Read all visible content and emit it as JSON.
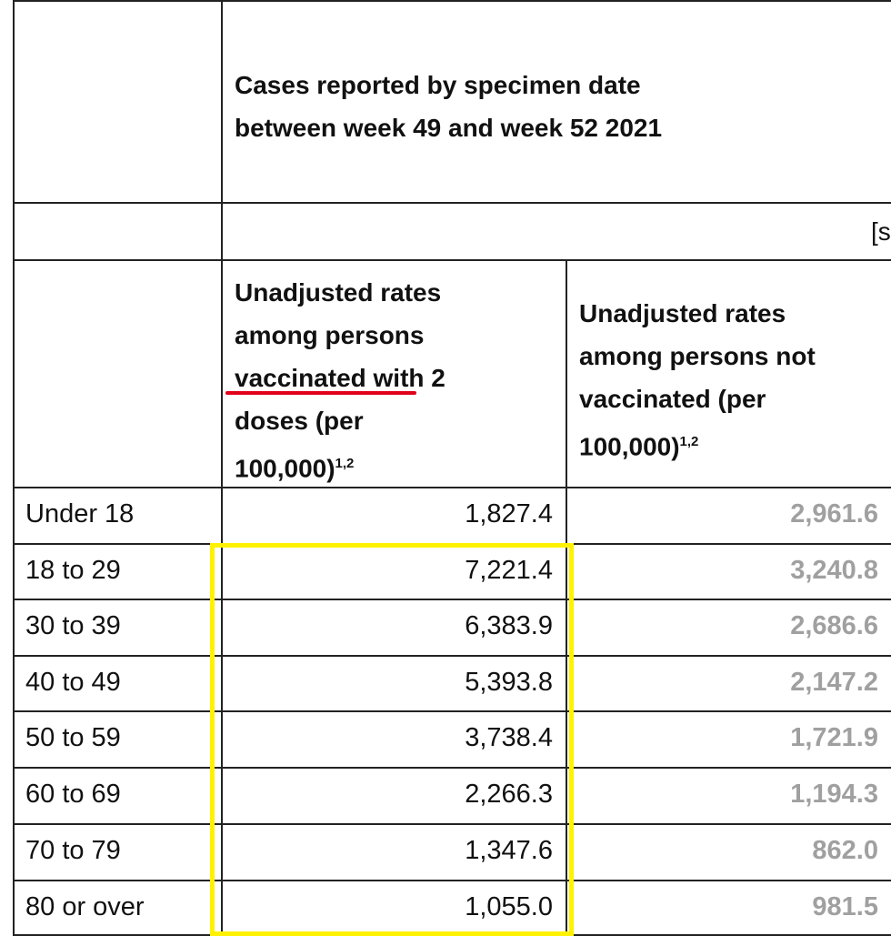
{
  "header": {
    "title_lines": [
      "Cases reported by specimen date",
      "between week 49 and week 52 2021"
    ],
    "note": "[s"
  },
  "columns": [
    {
      "lines": [
        "Unadjusted rates",
        "among persons",
        "vaccinated with 2",
        "doses (per",
        "100,000)"
      ],
      "superscript": "1,2"
    },
    {
      "lines": [
        "Unadjusted rates",
        "among persons not",
        "vaccinated (per",
        "100,000)"
      ],
      "superscript": "1,2"
    }
  ],
  "rows": [
    {
      "label": "Under 18",
      "vaccinated": "1,827.4",
      "not_vaccinated": "2,961.6"
    },
    {
      "label": "18 to 29",
      "vaccinated": "7,221.4",
      "not_vaccinated": "3,240.8"
    },
    {
      "label": "30 to 39",
      "vaccinated": "6,383.9",
      "not_vaccinated": "2,686.6"
    },
    {
      "label": "40 to 49",
      "vaccinated": "5,393.8",
      "not_vaccinated": "2,147.2"
    },
    {
      "label": "50 to 59",
      "vaccinated": "3,738.4",
      "not_vaccinated": "1,721.9"
    },
    {
      "label": "60 to 69",
      "vaccinated": "2,266.3",
      "not_vaccinated": "1,194.3"
    },
    {
      "label": "70 to 79",
      "vaccinated": "1,347.6",
      "not_vaccinated": "862.0"
    },
    {
      "label": "80 or over",
      "vaccinated": "1,055.0",
      "not_vaccinated": "981.5"
    }
  ]
}
